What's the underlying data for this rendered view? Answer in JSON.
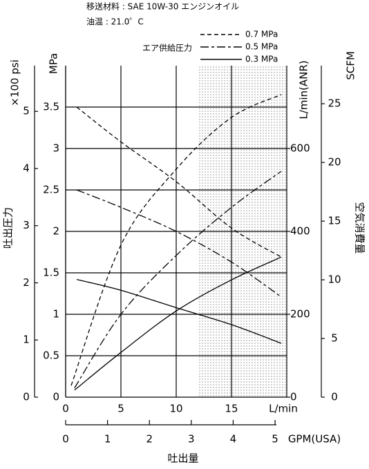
{
  "header": {
    "line1": "移送材料 : SAE 10W-30 エンジンオイル",
    "line2": "油温 : 21.0゜C"
  },
  "chart_data": {
    "type": "line",
    "x_title": "吐出量",
    "y_title": "吐出圧力",
    "y2_title": "空気消費量",
    "xlim": [
      0,
      20
    ],
    "xticks": [
      0,
      5,
      10,
      15
    ],
    "x_label": "L/min",
    "ylim": [
      0,
      4
    ],
    "yticks": [
      0,
      0.5,
      1,
      1.5,
      2,
      2.5,
      3,
      3.5
    ],
    "y_label": "MPa",
    "y2lim": [
      0,
      800
    ],
    "y2ticks": [
      0,
      200,
      400,
      600
    ],
    "y2_label": "L/min(ANR)",
    "psi_axis": {
      "label": "×100 psi",
      "lim": [
        0,
        5.8
      ],
      "ticks": [
        0,
        1,
        2,
        3,
        4,
        5
      ]
    },
    "scfm_axis": {
      "label": "SCFM",
      "lim": [
        0,
        28.25
      ],
      "ticks": [
        0,
        5,
        10,
        15,
        20,
        25
      ]
    },
    "gpm_axis": {
      "label": "GPM(USA)",
      "lim": [
        0,
        5.28
      ],
      "ticks": [
        0,
        1,
        2,
        3,
        4,
        5
      ]
    },
    "shade_x": [
      12,
      20
    ],
    "grid": true,
    "legend": {
      "title": "エア供給圧力",
      "position": "top-right"
    },
    "series": [
      {
        "name": "0.7 MPa",
        "color": "#000000",
        "dash": "6,4",
        "pressure_x": [
          1,
          5,
          10,
          15,
          19.5
        ],
        "pressure": [
          3.5,
          3.08,
          2.6,
          2.04,
          1.69
        ],
        "air_x": [
          0.5,
          5,
          10,
          15,
          19.5
        ],
        "air": [
          28,
          367,
          550,
          675,
          730
        ]
      },
      {
        "name": "0.5 MPa",
        "color": "#000000",
        "dash": "12,4,4,4",
        "pressure_x": [
          1,
          5,
          10,
          15,
          19.5
        ],
        "pressure": [
          2.5,
          2.29,
          2.0,
          1.63,
          1.21
        ],
        "air_x": [
          0.8,
          5,
          10,
          15,
          19.5
        ],
        "air": [
          22,
          200,
          342,
          458,
          545
        ]
      },
      {
        "name": "0.3 MPa",
        "color": "#000000",
        "dash": "",
        "pressure_x": [
          1,
          5,
          10,
          15,
          19.5
        ],
        "pressure": [
          1.42,
          1.29,
          1.08,
          0.875,
          0.65
        ],
        "air_x": [
          0.8,
          5,
          10,
          15,
          19.5
        ],
        "air": [
          17,
          108,
          208,
          283,
          338
        ]
      }
    ]
  }
}
